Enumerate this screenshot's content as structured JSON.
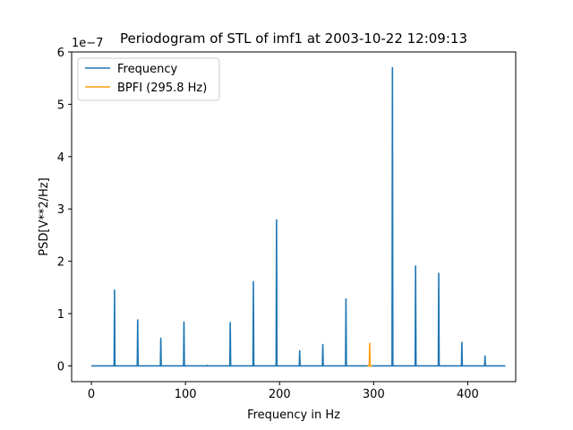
{
  "chart_data": {
    "type": "line",
    "title": "Periodogram of STL of imf1 at 2003-10-22 12:09:13",
    "xlabel": "Frequency in Hz",
    "ylabel": "PSD[V**2/Hz]",
    "y_offset_label": "1e−7",
    "xlim": [
      -21,
      451
    ],
    "ylim": [
      -0.3,
      6.0
    ],
    "x_ticks": [
      0,
      100,
      200,
      300,
      400
    ],
    "y_ticks": [
      0,
      1,
      2,
      3,
      4,
      5,
      6
    ],
    "grid": false,
    "legend_position": "top-left",
    "series": [
      {
        "name": "Frequency",
        "color": "#1f77b4",
        "x_range": [
          0,
          440
        ],
        "baseline": 0.0,
        "peaks": [
          {
            "x": 24.6,
            "y": 1.45
          },
          {
            "x": 49.2,
            "y": 0.88
          },
          {
            "x": 73.8,
            "y": 0.53
          },
          {
            "x": 98.4,
            "y": 0.84
          },
          {
            "x": 123.0,
            "y": 0.01
          },
          {
            "x": 147.6,
            "y": 0.83
          },
          {
            "x": 172.2,
            "y": 1.61
          },
          {
            "x": 196.8,
            "y": 2.79
          },
          {
            "x": 221.4,
            "y": 0.29
          },
          {
            "x": 246.0,
            "y": 0.41
          },
          {
            "x": 270.6,
            "y": 1.28
          },
          {
            "x": 320.0,
            "y": 5.7
          },
          {
            "x": 344.6,
            "y": 1.91
          },
          {
            "x": 369.2,
            "y": 1.77
          },
          {
            "x": 393.8,
            "y": 0.45
          },
          {
            "x": 418.4,
            "y": 0.19
          }
        ]
      },
      {
        "name": "BPFI (295.8 Hz)",
        "color": "#ff9f0a",
        "x_range": [
          293.5,
          298.5
        ],
        "baseline": 0.0,
        "peaks": [
          {
            "x": 295.8,
            "y": 0.43
          }
        ]
      }
    ]
  }
}
